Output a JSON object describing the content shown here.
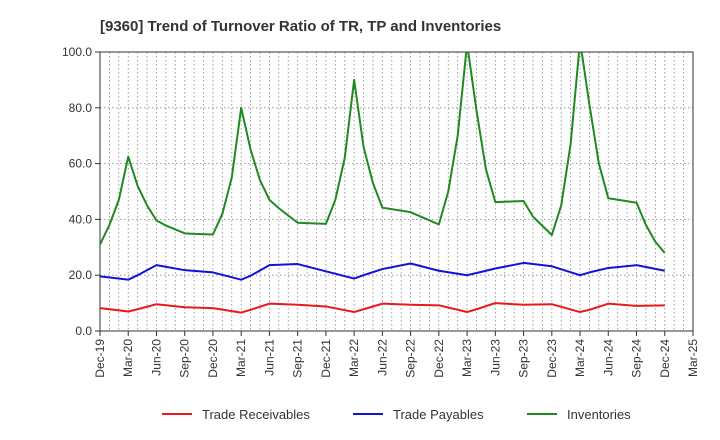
{
  "chart_data": {
    "type": "line",
    "title": "[9360]  Trend of Turnover Ratio of TR, TP and Inventories",
    "xlabel": "",
    "ylabel": "",
    "ylim": [
      0,
      100
    ],
    "yticks": [
      "0.0",
      "20.0",
      "40.0",
      "60.0",
      "80.0",
      "100.0"
    ],
    "x_tick_labels": [
      "Dec-19",
      "Mar-20",
      "Jun-20",
      "Sep-20",
      "Dec-20",
      "Mar-21",
      "Jun-21",
      "Sep-21",
      "Dec-21",
      "Mar-22",
      "Jun-22",
      "Sep-22",
      "Dec-22",
      "Mar-23",
      "Jun-23",
      "Sep-23",
      "Dec-23",
      "Mar-24",
      "Jun-24",
      "Sep-24",
      "Dec-24",
      "Mar-25"
    ],
    "x_range_months": [
      0,
      63
    ],
    "grid": true,
    "legend_position": "bottom",
    "series": [
      {
        "name": "Trade Receivables",
        "color": "#e8191b",
        "points": [
          [
            0,
            8.2
          ],
          [
            3,
            7.0
          ],
          [
            4,
            7.8
          ],
          [
            6,
            9.6
          ],
          [
            9,
            8.5
          ],
          [
            12,
            8.2
          ],
          [
            15,
            6.6
          ],
          [
            16,
            7.6
          ],
          [
            18,
            9.8
          ],
          [
            21,
            9.4
          ],
          [
            24,
            8.8
          ],
          [
            27,
            6.8
          ],
          [
            28,
            7.8
          ],
          [
            30,
            9.8
          ],
          [
            33,
            9.4
          ],
          [
            36,
            9.2
          ],
          [
            39,
            6.8
          ],
          [
            40,
            7.8
          ],
          [
            42,
            10.0
          ],
          [
            45,
            9.4
          ],
          [
            48,
            9.6
          ],
          [
            51,
            6.8
          ],
          [
            52,
            7.6
          ],
          [
            54,
            9.8
          ],
          [
            57,
            9.0
          ],
          [
            60,
            9.2
          ]
        ]
      },
      {
        "name": "Trade Payables",
        "color": "#1212d6",
        "points": [
          [
            0,
            19.6
          ],
          [
            3,
            18.4
          ],
          [
            4,
            20.0
          ],
          [
            6,
            23.6
          ],
          [
            9,
            21.8
          ],
          [
            12,
            21.0
          ],
          [
            15,
            18.4
          ],
          [
            16,
            19.8
          ],
          [
            18,
            23.6
          ],
          [
            21,
            24.0
          ],
          [
            24,
            21.4
          ],
          [
            27,
            18.8
          ],
          [
            28,
            20.0
          ],
          [
            30,
            22.2
          ],
          [
            33,
            24.2
          ],
          [
            36,
            21.6
          ],
          [
            39,
            20.0
          ],
          [
            40,
            20.8
          ],
          [
            42,
            22.4
          ],
          [
            45,
            24.4
          ],
          [
            48,
            23.2
          ],
          [
            51,
            20.0
          ],
          [
            52,
            21.0
          ],
          [
            54,
            22.6
          ],
          [
            57,
            23.6
          ],
          [
            60,
            21.6
          ]
        ]
      },
      {
        "name": "Inventories",
        "color": "#1f8a1f",
        "points": [
          [
            0,
            31.0
          ],
          [
            1,
            38.0
          ],
          [
            2,
            47.0
          ],
          [
            3,
            62.5
          ],
          [
            4,
            52.0
          ],
          [
            5,
            45.0
          ],
          [
            6,
            39.6
          ],
          [
            7,
            37.8
          ],
          [
            9,
            35.0
          ],
          [
            10,
            34.8
          ],
          [
            12,
            34.6
          ],
          [
            13,
            42.0
          ],
          [
            14,
            55.0
          ],
          [
            15,
            80.0
          ],
          [
            16,
            65.0
          ],
          [
            17,
            54.0
          ],
          [
            18,
            47.0
          ],
          [
            19,
            44.0
          ],
          [
            21,
            38.8
          ],
          [
            24,
            38.4
          ],
          [
            25,
            47.0
          ],
          [
            26,
            62.0
          ],
          [
            27,
            90.0
          ],
          [
            28,
            66.0
          ],
          [
            29,
            53.0
          ],
          [
            30,
            44.2
          ],
          [
            33,
            42.6
          ],
          [
            36,
            38.2
          ],
          [
            37,
            50.0
          ],
          [
            38,
            70.0
          ],
          [
            39,
            103.0
          ],
          [
            40,
            79.0
          ],
          [
            41,
            58.0
          ],
          [
            42,
            46.2
          ],
          [
            45,
            46.6
          ],
          [
            46,
            41.0
          ],
          [
            48,
            34.4
          ],
          [
            49,
            45.0
          ],
          [
            50,
            67.0
          ],
          [
            51,
            104.0
          ],
          [
            52,
            81.0
          ],
          [
            53,
            60.0
          ],
          [
            54,
            47.6
          ],
          [
            57,
            46.0
          ],
          [
            58,
            38.0
          ],
          [
            59,
            32.0
          ],
          [
            60,
            28.0
          ]
        ]
      }
    ]
  }
}
